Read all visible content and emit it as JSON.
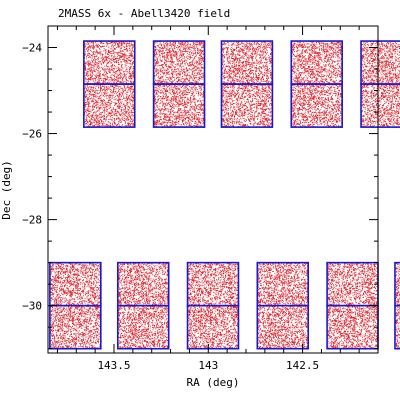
{
  "chart_data": {
    "type": "scatter",
    "title": "2MASS 6x - Abell3420 field",
    "xlabel": "RA (deg)",
    "ylabel": "Dec (deg)",
    "xlim": [
      143.85,
      142.1
    ],
    "ylim": [
      -31.1,
      -23.5
    ],
    "x_inverted": true,
    "xticks": [
      143.5,
      143,
      142.5
    ],
    "xtick_labels": [
      "143.5",
      "143",
      "142.5"
    ],
    "yticks": [
      -30,
      -28,
      -26,
      -24
    ],
    "ytick_labels": [
      "−30",
      "−28",
      "−26",
      "−24"
    ],
    "grid": false,
    "legend": "none",
    "colors": {
      "points": "#e0202a",
      "tiles": "#1818d0",
      "axes": "#000000"
    },
    "series": [
      {
        "row": "north",
        "tiles": [
          {
            "ra": [
              143.66,
              143.39
            ],
            "dec": [
              -24.85,
              -23.85
            ]
          },
          {
            "ra": [
              143.66,
              143.39
            ],
            "dec": [
              -25.85,
              -24.85
            ]
          },
          {
            "ra": [
              143.29,
              143.02
            ],
            "dec": [
              -24.85,
              -23.85
            ]
          },
          {
            "ra": [
              143.29,
              143.02
            ],
            "dec": [
              -25.85,
              -24.85
            ]
          },
          {
            "ra": [
              142.93,
              142.66
            ],
            "dec": [
              -24.85,
              -23.85
            ]
          },
          {
            "ra": [
              142.93,
              142.66
            ],
            "dec": [
              -25.85,
              -24.85
            ]
          },
          {
            "ra": [
              142.56,
              142.29
            ],
            "dec": [
              -24.85,
              -23.85
            ]
          },
          {
            "ra": [
              142.56,
              142.29
            ],
            "dec": [
              -25.85,
              -24.85
            ]
          },
          {
            "ra": [
              142.19,
              141.92
            ],
            "dec": [
              -24.85,
              -23.85
            ]
          },
          {
            "ra": [
              142.19,
              141.92
            ],
            "dec": [
              -25.85,
              -24.85
            ]
          }
        ]
      },
      {
        "row": "south",
        "tiles": [
          {
            "ra": [
              143.84,
              143.57
            ],
            "dec": [
              -30.0,
              -29.0
            ]
          },
          {
            "ra": [
              143.84,
              143.57
            ],
            "dec": [
              -31.0,
              -30.0
            ]
          },
          {
            "ra": [
              143.48,
              143.21
            ],
            "dec": [
              -30.0,
              -29.0
            ]
          },
          {
            "ra": [
              143.48,
              143.21
            ],
            "dec": [
              -31.0,
              -30.0
            ]
          },
          {
            "ra": [
              143.11,
              142.84
            ],
            "dec": [
              -30.0,
              -29.0
            ]
          },
          {
            "ra": [
              143.11,
              142.84
            ],
            "dec": [
              -31.0,
              -30.0
            ]
          },
          {
            "ra": [
              142.74,
              142.47
            ],
            "dec": [
              -30.0,
              -29.0
            ]
          },
          {
            "ra": [
              142.74,
              142.47
            ],
            "dec": [
              -31.0,
              -30.0
            ]
          },
          {
            "ra": [
              142.37,
              142.1
            ],
            "dec": [
              -30.0,
              -29.0
            ]
          },
          {
            "ra": [
              142.37,
              142.1
            ],
            "dec": [
              -31.0,
              -30.0
            ]
          },
          {
            "ra": [
              142.01,
              141.74
            ],
            "dec": [
              -30.0,
              -29.0
            ]
          },
          {
            "ra": [
              142.01,
              141.74
            ],
            "dec": [
              -31.0,
              -30.0
            ]
          }
        ]
      }
    ]
  }
}
